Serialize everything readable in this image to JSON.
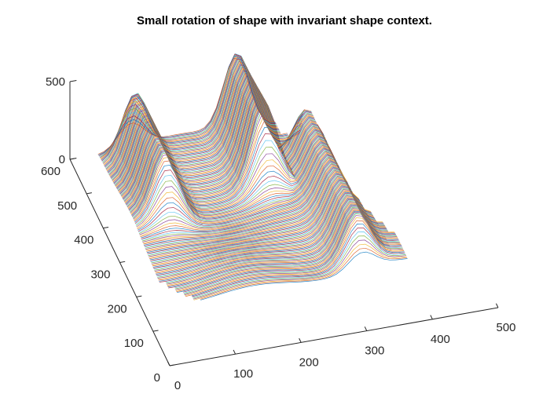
{
  "chart_data": {
    "type": "line",
    "title": "Small rotation of shape with invariant shape context.",
    "xlabel": "",
    "ylabel": "",
    "zlabel": "",
    "xlim": [
      0,
      500
    ],
    "ylim": [
      0,
      600
    ],
    "zlim": [
      0,
      500
    ],
    "x_ticks": [
      "0",
      "100",
      "200",
      "300",
      "400",
      "500"
    ],
    "y_ticks": [
      "0",
      "100",
      "200",
      "300",
      "400",
      "500",
      "600"
    ],
    "z_ticks": [
      "0",
      "500"
    ],
    "grid": false,
    "legend": "none",
    "view": "3-D",
    "series_colors": [
      "#0072BD",
      "#D95319",
      "#EDB120",
      "#7E2F8E",
      "#77AC30",
      "#4DBEEE",
      "#A2142F"
    ],
    "surface": {
      "description_units": "data",
      "ridges": [
        {
          "x": 90,
          "y_start": 560,
          "y_end": 380,
          "z_peak": 420
        },
        {
          "x": 250,
          "y_start": 580,
          "y_end": 420,
          "z_peak": 520
        },
        {
          "x": 330,
          "y_start": 480,
          "y_end": 180,
          "z_peak": 300
        }
      ]
    }
  }
}
